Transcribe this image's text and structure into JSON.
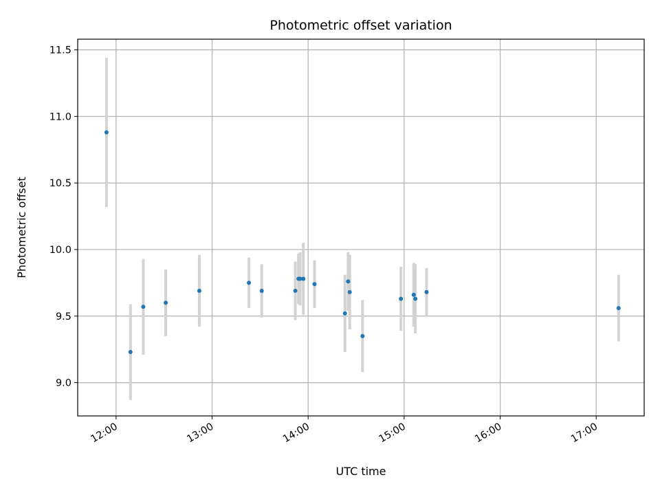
{
  "chart_data": {
    "type": "scatter",
    "title": "Photometric offset variation",
    "xlabel": "UTC time",
    "ylabel": "Photometric offset",
    "xlim": [
      "11:36",
      "17:30"
    ],
    "ylim": [
      8.75,
      11.58
    ],
    "x_ticks": [
      "12:00",
      "13:00",
      "14:00",
      "15:00",
      "16:00",
      "17:00"
    ],
    "y_ticks": [
      "9.0",
      "9.5",
      "10.0",
      "10.5",
      "11.0",
      "11.5"
    ],
    "grid": true,
    "marker_color": "#1f77b4",
    "errorbar_color": "#d3d3d3",
    "points": [
      {
        "x": "11:54",
        "y": 10.88,
        "err": 0.56
      },
      {
        "x": "12:09",
        "y": 9.23,
        "err": 0.36
      },
      {
        "x": "12:17",
        "y": 9.57,
        "err": 0.36
      },
      {
        "x": "12:31",
        "y": 9.6,
        "err": 0.25
      },
      {
        "x": "12:52",
        "y": 9.69,
        "err": 0.27
      },
      {
        "x": "13:23",
        "y": 9.75,
        "err": 0.19
      },
      {
        "x": "13:31",
        "y": 9.69,
        "err": 0.2
      },
      {
        "x": "13:52",
        "y": 9.69,
        "err": 0.22
      },
      {
        "x": "13:54",
        "y": 9.78,
        "err": 0.19
      },
      {
        "x": "13:55",
        "y": 9.78,
        "err": 0.2
      },
      {
        "x": "13:57",
        "y": 9.78,
        "err": 0.27
      },
      {
        "x": "14:04",
        "y": 9.74,
        "err": 0.18
      },
      {
        "x": "14:23",
        "y": 9.52,
        "err": 0.29
      },
      {
        "x": "14:25",
        "y": 9.76,
        "err": 0.22
      },
      {
        "x": "14:26",
        "y": 9.68,
        "err": 0.28
      },
      {
        "x": "14:34",
        "y": 9.35,
        "err": 0.27
      },
      {
        "x": "14:58",
        "y": 9.63,
        "err": 0.24
      },
      {
        "x": "15:06",
        "y": 9.66,
        "err": 0.24
      },
      {
        "x": "15:07",
        "y": 9.63,
        "err": 0.26
      },
      {
        "x": "15:14",
        "y": 9.68,
        "err": 0.18
      },
      {
        "x": "17:14",
        "y": 9.56,
        "err": 0.25
      }
    ]
  }
}
